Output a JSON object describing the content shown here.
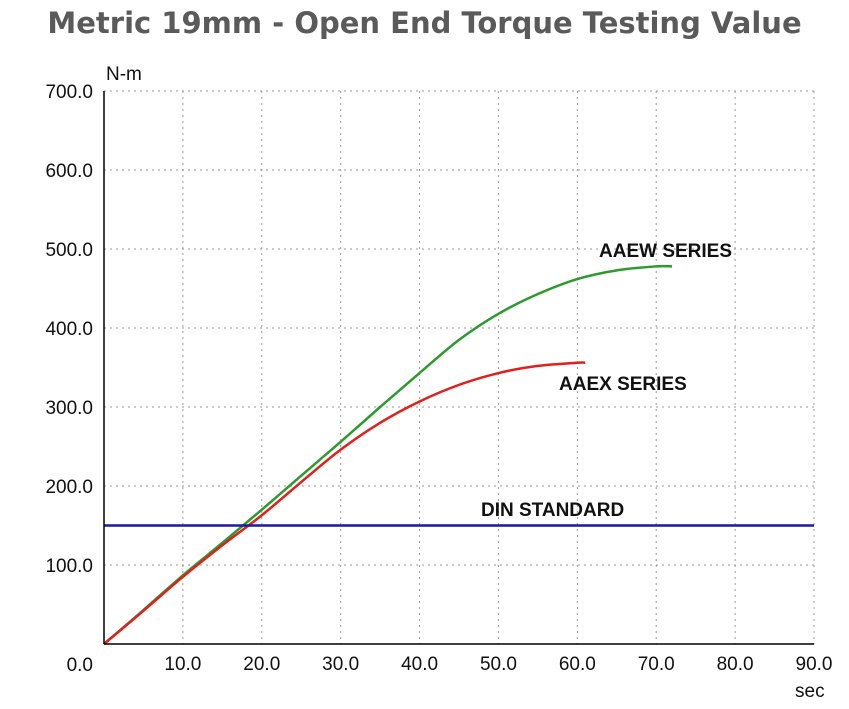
{
  "chart_data": {
    "type": "line",
    "title": "Metric 19mm - Open End Torque Testing Value",
    "xlabel": "sec",
    "ylabel": "N-m",
    "xlim": [
      0,
      90
    ],
    "ylim": [
      0,
      700
    ],
    "grid": true,
    "x_ticks": [
      "10.0",
      "20.0",
      "30.0",
      "40.0",
      "50.0",
      "60.0",
      "70.0",
      "80.0",
      "90.0"
    ],
    "y_ticks": [
      "0.0",
      "100.0",
      "200.0",
      "300.0",
      "400.0",
      "500.0",
      "600.0",
      "700.0"
    ],
    "series": [
      {
        "name": "AAEW SERIES",
        "color": "#2e9a2e",
        "x": [
          0,
          5,
          10,
          15,
          20,
          25,
          30,
          35,
          40,
          45,
          50,
          55,
          60,
          65,
          70,
          72
        ],
        "y": [
          0,
          43,
          87,
          128,
          170,
          213,
          256,
          300,
          343,
          385,
          418,
          443,
          462,
          473,
          478,
          478
        ]
      },
      {
        "name": "AAEX SERIES",
        "color": "#e0201c",
        "x": [
          0,
          5,
          10,
          15,
          20,
          25,
          30,
          35,
          40,
          45,
          50,
          55,
          60,
          61
        ],
        "y": [
          0,
          42,
          85,
          125,
          163,
          205,
          246,
          280,
          307,
          328,
          343,
          352,
          356,
          356
        ]
      },
      {
        "name": "DIN STANDARD",
        "color": "#1a1aa0",
        "x": [
          0,
          90
        ],
        "y": [
          150,
          150
        ]
      }
    ],
    "annotations": [
      "AAEW SERIES",
      "AAEX SERIES",
      "DIN STANDARD"
    ]
  }
}
